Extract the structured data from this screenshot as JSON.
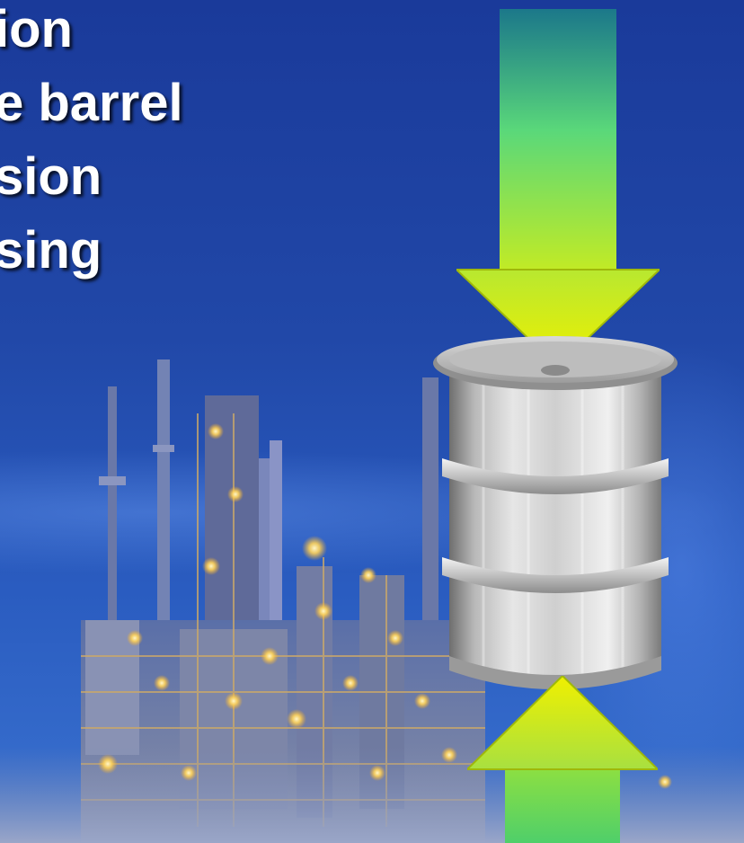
{
  "bullets": [
    {
      "text": "ion"
    },
    {
      "text": "e barrel"
    },
    {
      "text": "sion"
    },
    {
      "text": "sing"
    }
  ],
  "colors": {
    "background_top": "#1a3a9a",
    "background_bottom": "#3a72d0",
    "arrow_top": "#1c7f88",
    "arrow_mid": "#5ad87a",
    "arrow_head": "#e6f000",
    "barrel": "#c8c8c8"
  },
  "icons": {
    "barrel": "oil-barrel-icon",
    "arrow_down": "arrow-down-icon",
    "arrow_up": "arrow-up-icon",
    "refinery": "refinery-image"
  }
}
